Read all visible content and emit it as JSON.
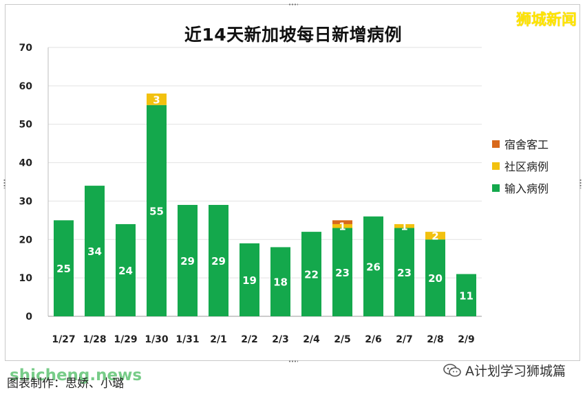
{
  "brand": "狮城新闻",
  "footer": {
    "credit": "图表制作：思娇、小璐",
    "watermark_left": "shicheng.news",
    "watermark_right": "A计划学习狮城篇",
    "wechat_icon": "wechat-icon"
  },
  "colors": {
    "import": "#14a84c",
    "community": "#f2c10f",
    "dorm": "#d8681b"
  },
  "chart_data": {
    "type": "bar",
    "stacked": true,
    "title": "近14天新加坡每日新增病例",
    "categories": [
      "1/27",
      "1/28",
      "1/29",
      "1/30",
      "1/31",
      "2/1",
      "2/2",
      "2/3",
      "2/4",
      "2/5",
      "2/6",
      "2/7",
      "2/8",
      "2/9"
    ],
    "series": [
      {
        "name": "输入病例",
        "color": "#14a84c",
        "values": [
          25,
          34,
          24,
          55,
          29,
          29,
          19,
          18,
          22,
          23,
          26,
          23,
          20,
          11
        ]
      },
      {
        "name": "社区病例",
        "color": "#f2c10f",
        "values": [
          0,
          0,
          0,
          3,
          0,
          0,
          0,
          0,
          0,
          1,
          0,
          1,
          2,
          0
        ]
      },
      {
        "name": "宿舍客工",
        "color": "#d8681b",
        "values": [
          0,
          0,
          0,
          0,
          0,
          0,
          0,
          0,
          0,
          1,
          0,
          0,
          0,
          0
        ]
      }
    ],
    "data_labels": {
      "输入病例": [
        "25",
        "34",
        "24",
        "55",
        "29",
        "29",
        "19",
        "18",
        "22",
        "23",
        "26",
        "23",
        "20",
        "11"
      ],
      "社区病例": [
        "",
        "",
        "",
        "3",
        "",
        "",
        "",
        "",
        "",
        "1",
        "",
        "1",
        "2",
        ""
      ],
      "宿舍客工": [
        "",
        "",
        "",
        "",
        "",
        "",
        "",
        "",
        "",
        "",
        "",
        "",
        "",
        ""
      ]
    },
    "legend_order": [
      "宿舍客工",
      "社区病例",
      "输入病例"
    ],
    "legend_position": "right",
    "xlabel": "",
    "ylabel": "",
    "ylim": [
      0,
      70
    ],
    "yticks": [
      0,
      10,
      20,
      30,
      40,
      50,
      60,
      70
    ],
    "grid": true
  }
}
